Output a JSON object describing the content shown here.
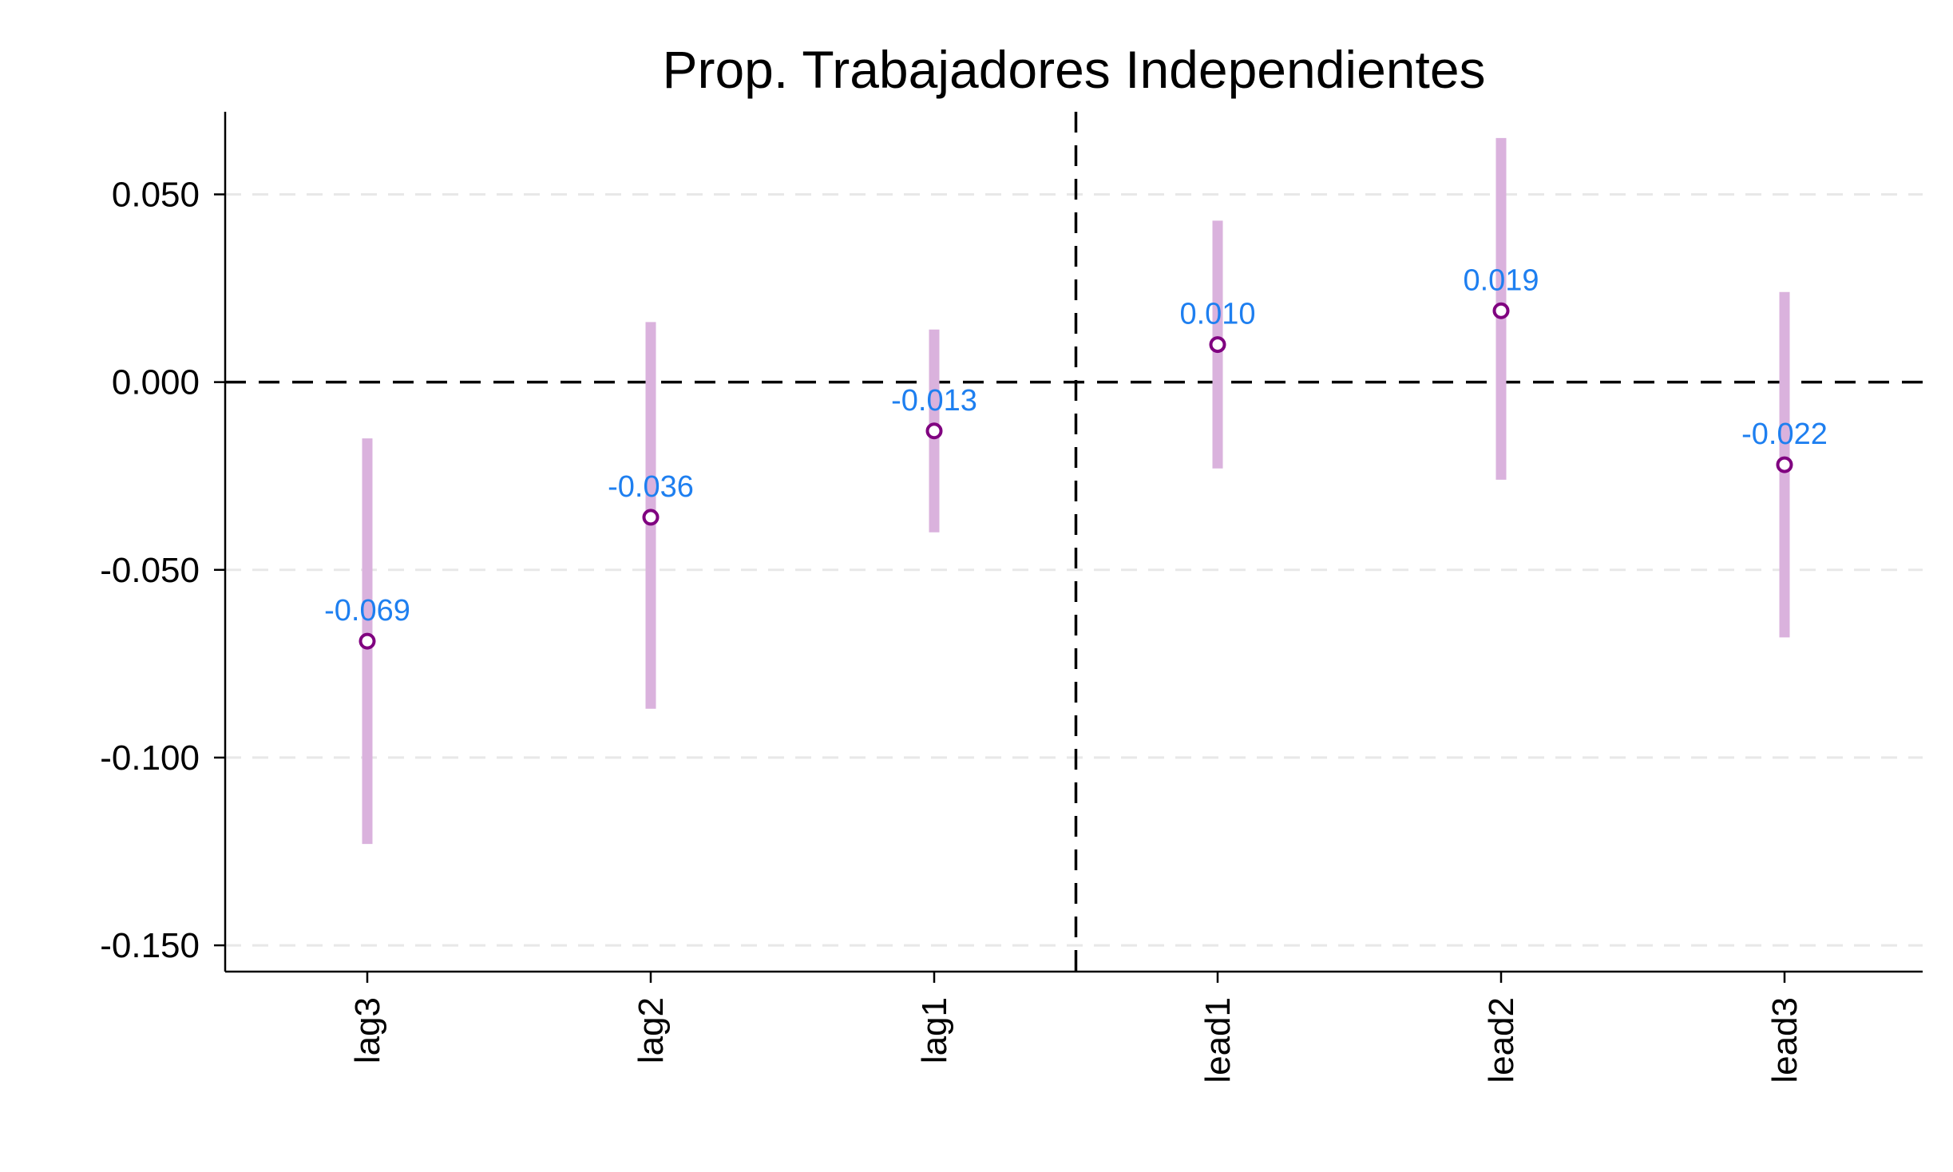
{
  "chart_data": {
    "type": "scatter",
    "title": "Prop. Trabajadores Independientes",
    "xlabel": "",
    "ylabel": "",
    "categories": [
      "lag3",
      "lag2",
      "lag1",
      "lead1",
      "lead2",
      "lead3"
    ],
    "series": [
      {
        "estimate": [
          -0.069,
          -0.036,
          -0.013,
          0.01,
          0.019,
          -0.022
        ],
        "ci_low": [
          -0.123,
          -0.087,
          -0.04,
          -0.023,
          -0.026,
          -0.068
        ],
        "ci_high": [
          -0.015,
          0.016,
          0.014,
          0.043,
          0.065,
          0.024
        ],
        "data_labels": [
          "-0.069",
          "-0.036",
          "-0.013",
          "0.010",
          "0.019",
          "-0.022"
        ]
      }
    ],
    "ylim": [
      -0.157,
      0.072
    ],
    "yticks": [
      0.05,
      0.0,
      -0.05,
      -0.1,
      -0.15
    ],
    "ytick_labels": [
      "0.050",
      "0.000",
      "-0.050",
      "-0.100",
      "-0.150"
    ],
    "reference_lines": {
      "y": 0,
      "x_between": [
        "lag1",
        "lead1"
      ]
    },
    "grid": true,
    "legend": "none",
    "colors": {
      "ci_bar": "#dab2dd",
      "marker": "#800080",
      "data_label": "#1e7ff0",
      "grid": "#e8e8e8",
      "reference": "#000000"
    }
  }
}
